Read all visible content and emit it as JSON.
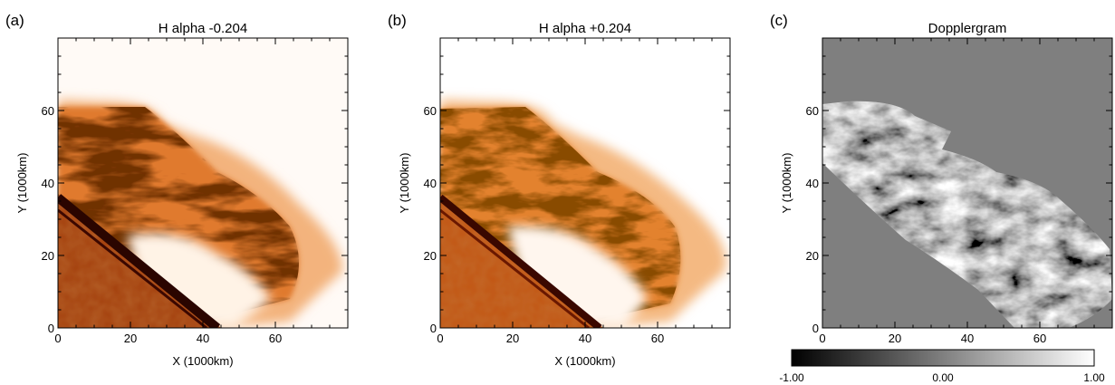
{
  "panels": [
    {
      "letter": "(a)",
      "title": "H alpha -0.204",
      "xlabel": "X (1000km)",
      "ylabel": "Y (1000km)"
    },
    {
      "letter": "(b)",
      "title": "H alpha +0.204",
      "xlabel": "X (1000km)",
      "ylabel": "Y (1000km)"
    },
    {
      "letter": "(c)",
      "title": "Dopplergram",
      "xlabel": "",
      "ylabel": "Y (1000km)"
    }
  ],
  "colorbar": {
    "labels": [
      "-1.00",
      "0.00",
      "1.00"
    ],
    "range": [
      -1.0,
      1.0
    ],
    "colormap": "grayscale"
  },
  "chart_data": [
    {
      "type": "heatmap",
      "title": "H alpha -0.204",
      "xlabel": "X (1000km)",
      "ylabel": "Y (1000km)",
      "xlim": [
        0,
        80
      ],
      "ylim": [
        0,
        80
      ],
      "xticks": [
        0,
        20,
        40,
        60
      ],
      "yticks": [
        0,
        20,
        40,
        60
      ],
      "colormap": "orange-heat",
      "colors": {
        "low": "#3a0a00",
        "mid": "#c85a10",
        "high": "#ffffff"
      }
    },
    {
      "type": "heatmap",
      "title": "H alpha +0.204",
      "xlabel": "X (1000km)",
      "ylabel": "Y (1000km)",
      "xlim": [
        0,
        80
      ],
      "ylim": [
        0,
        80
      ],
      "xticks": [
        0,
        20,
        40,
        60
      ],
      "yticks": [
        0,
        20,
        40,
        60
      ],
      "colormap": "orange-heat",
      "colors": {
        "low": "#3a0a00",
        "mid": "#c85a10",
        "high": "#ffffff"
      }
    },
    {
      "type": "heatmap",
      "title": "Dopplergram",
      "xlabel": "",
      "ylabel": "Y (1000km)",
      "xlim": [
        0,
        80
      ],
      "ylim": [
        0,
        80
      ],
      "xticks": [
        0,
        20,
        40,
        60
      ],
      "yticks": [
        0,
        20,
        40,
        60
      ],
      "colormap": "grayscale",
      "colors": {
        "background": "#7f7f7f"
      },
      "colorbar_range": [
        -1.0,
        1.0
      ]
    }
  ]
}
